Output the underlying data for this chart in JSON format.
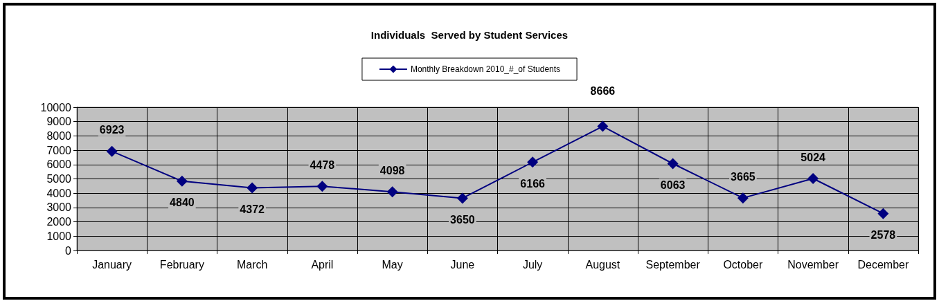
{
  "chart_data": {
    "type": "line",
    "title": "Individuals  Served by Student Services",
    "categories": [
      "January",
      "February",
      "March",
      "April",
      "May",
      "June",
      "July",
      "August",
      "September",
      "October",
      "November",
      "December"
    ],
    "series": [
      {
        "name": "Monthly Breakdown 2010_#_of Students",
        "color": "#000080",
        "values": [
          6923,
          4840,
          4372,
          4478,
          4098,
          3650,
          6166,
          8666,
          6063,
          3665,
          5024,
          2578
        ]
      }
    ],
    "ylim": [
      0,
      10000
    ],
    "yticks": [
      0,
      1000,
      2000,
      3000,
      4000,
      5000,
      6000,
      7000,
      8000,
      9000,
      10000
    ],
    "grid": true,
    "legend": "top",
    "marker": "diamond",
    "line_style": "solid",
    "data_labels": true
  }
}
